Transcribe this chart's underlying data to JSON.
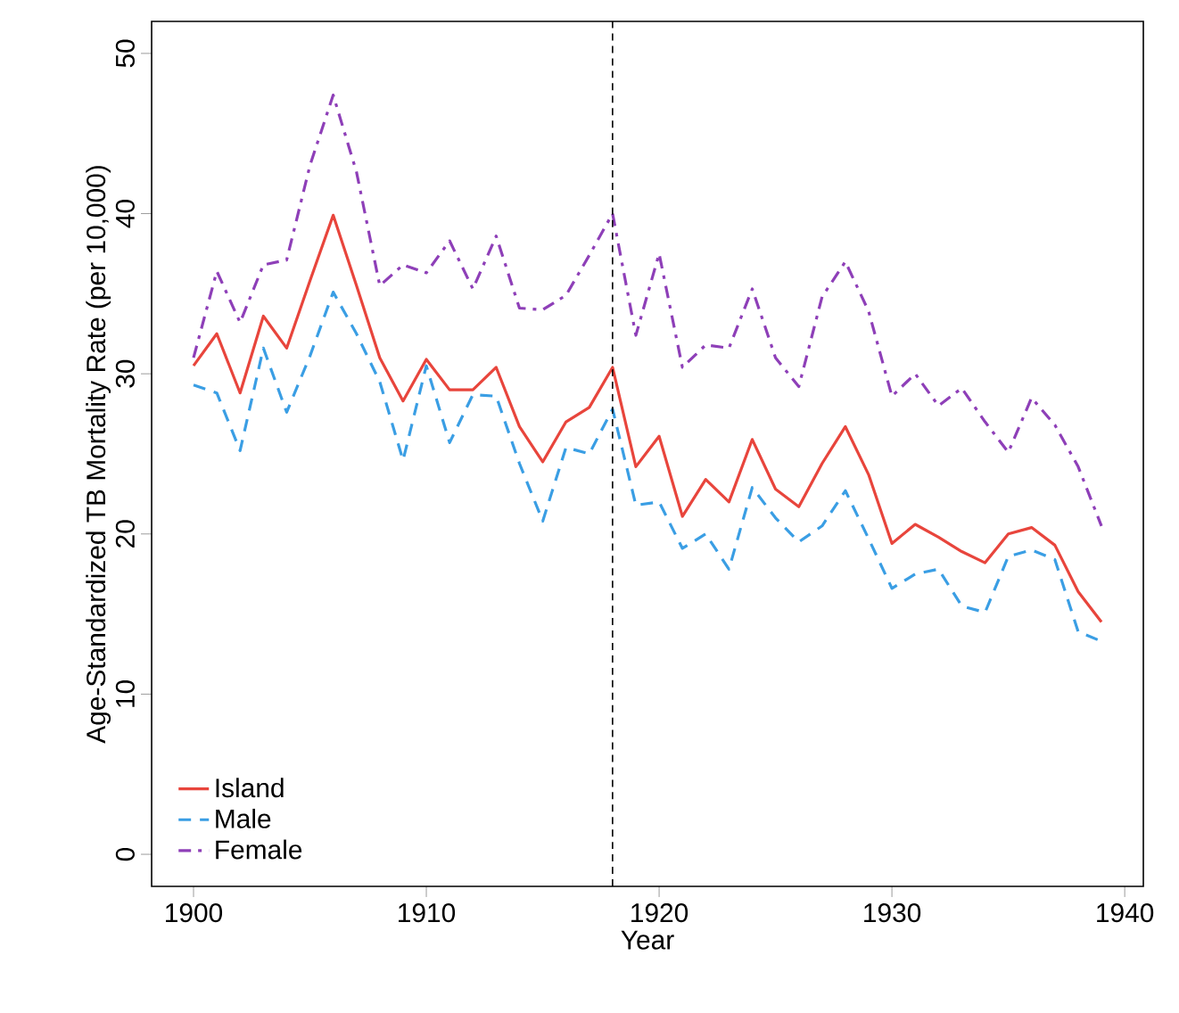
{
  "chart_data": {
    "type": "line",
    "xlabel": "Year",
    "ylabel": "Age-Standardized TB Mortality Rate (per 10,000)",
    "x": [
      1900,
      1901,
      1902,
      1903,
      1904,
      1905,
      1906,
      1907,
      1908,
      1909,
      1910,
      1911,
      1912,
      1913,
      1914,
      1915,
      1916,
      1917,
      1918,
      1919,
      1920,
      1921,
      1922,
      1923,
      1924,
      1925,
      1926,
      1927,
      1928,
      1929,
      1930,
      1931,
      1932,
      1933,
      1934,
      1935,
      1936,
      1937,
      1938,
      1939
    ],
    "series": [
      {
        "name": "Island",
        "color": "#e8453c",
        "line_style": "solid",
        "values": [
          30.5,
          32.5,
          28.8,
          33.6,
          31.6,
          35.8,
          39.9,
          35.5,
          31.0,
          28.3,
          30.9,
          29.0,
          29.0,
          30.4,
          26.7,
          24.5,
          27.0,
          27.9,
          30.4,
          24.2,
          26.1,
          21.1,
          23.4,
          22.0,
          25.9,
          22.8,
          21.7,
          24.4,
          26.7,
          23.7,
          19.4,
          20.6,
          19.8,
          18.9,
          18.2,
          20.0,
          20.4,
          19.3,
          16.4,
          14.5
        ]
      },
      {
        "name": "Male",
        "color": "#3a9ee4",
        "line_style": "dashed",
        "values": [
          29.3,
          28.8,
          25.2,
          31.6,
          27.6,
          31.1,
          35.1,
          32.5,
          29.5,
          24.6,
          30.5,
          25.7,
          28.7,
          28.6,
          24.4,
          20.8,
          25.4,
          25.0,
          27.8,
          21.8,
          22.0,
          19.1,
          20.0,
          17.8,
          22.9,
          21.0,
          19.5,
          20.5,
          22.7,
          19.7,
          16.6,
          17.5,
          17.8,
          15.5,
          15.1,
          18.6,
          19.0,
          18.4,
          13.9,
          13.3
        ]
      },
      {
        "name": "Female",
        "color": "#8e3fb8",
        "line_style": "dashdot",
        "values": [
          31.0,
          36.4,
          33.2,
          36.8,
          37.1,
          43.0,
          47.4,
          42.6,
          35.5,
          36.8,
          36.3,
          38.3,
          35.3,
          38.6,
          34.1,
          34.0,
          34.9,
          37.4,
          40.0,
          32.4,
          37.5,
          30.4,
          31.8,
          31.6,
          35.3,
          31.0,
          29.2,
          34.8,
          37.0,
          33.9,
          28.6,
          30.0,
          28.0,
          29.1,
          27.0,
          25.1,
          28.5,
          26.8,
          24.2,
          20.5
        ]
      }
    ],
    "xlim": [
      1898.2,
      1940.8
    ],
    "ylim": [
      -2,
      52
    ],
    "xticks": [
      1900,
      1910,
      1920,
      1930,
      1940
    ],
    "yticks": [
      0,
      10,
      20,
      30,
      40,
      50
    ],
    "ref_lines": [
      {
        "axis": "x",
        "value": 1918,
        "color": "#000000",
        "line_style": "dashed"
      }
    ],
    "grid": false,
    "legend": "bottom left",
    "marker": "none"
  }
}
